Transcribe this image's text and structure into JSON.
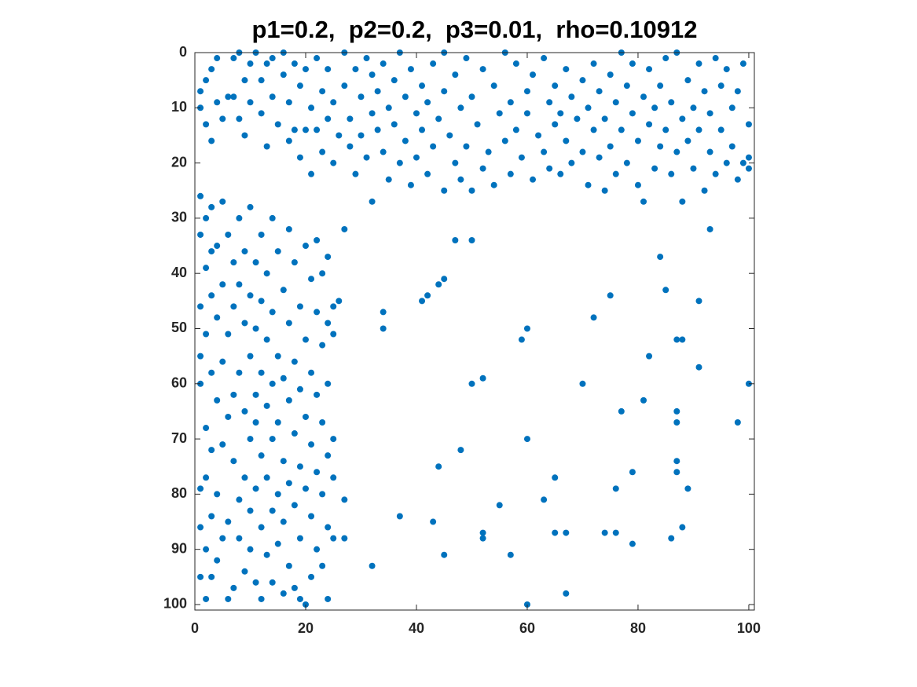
{
  "chart_data": {
    "type": "scatter",
    "title": "p1=0.2,  p2=0.2,  p3=0.01,  rho=0.10912",
    "xlim": [
      0,
      101
    ],
    "ylim": [
      0,
      101
    ],
    "y_direction": "reverse",
    "xticks": [
      0,
      20,
      40,
      60,
      80,
      100
    ],
    "yticks": [
      0,
      10,
      20,
      30,
      40,
      50,
      60,
      70,
      80,
      90,
      100
    ],
    "grid": false,
    "box": true,
    "series": [
      {
        "color": "#0072bd",
        "x": [
          47,
          50,
          93,
          84,
          34,
          34,
          41,
          42,
          44,
          45,
          72,
          75,
          85,
          91,
          60,
          59,
          87,
          88,
          82,
          91,
          50,
          52,
          70,
          100,
          81,
          77,
          87,
          87,
          98,
          60,
          48,
          44,
          87,
          87,
          79,
          65,
          76,
          89,
          63,
          55,
          37,
          43,
          52,
          52,
          65,
          67,
          74,
          76,
          88,
          86,
          79,
          45,
          57,
          32,
          67,
          60,
          27,
          27,
          26,
          27,
          1,
          1,
          2,
          2,
          3,
          3,
          4,
          4,
          5,
          6,
          7,
          7,
          8,
          8,
          9,
          9,
          10,
          10,
          11,
          12,
          12,
          13,
          13,
          14,
          14,
          15,
          16,
          16,
          17,
          17,
          18,
          18,
          19,
          19,
          20,
          20,
          21,
          21,
          22,
          22,
          23,
          23,
          24,
          24,
          25,
          25,
          26,
          27,
          27,
          28,
          28,
          29,
          29,
          30,
          30,
          31,
          31,
          32,
          32,
          32,
          33,
          33,
          34,
          34,
          35,
          35,
          36,
          36,
          37,
          37,
          38,
          38,
          39,
          39,
          40,
          40,
          41,
          41,
          42,
          42,
          43,
          43,
          44,
          45,
          45,
          45,
          46,
          47,
          47,
          48,
          48,
          49,
          49,
          50,
          50,
          51,
          52,
          52,
          53,
          54,
          54,
          55,
          56,
          56,
          57,
          57,
          58,
          58,
          59,
          60,
          60,
          61,
          61,
          62,
          63,
          63,
          64,
          64,
          65,
          65,
          66,
          66,
          67,
          67,
          68,
          68,
          69,
          70,
          70,
          71,
          71,
          72,
          72,
          73,
          73,
          74,
          74,
          75,
          75,
          76,
          76,
          77,
          77,
          78,
          78,
          79,
          79,
          80,
          80,
          81,
          81,
          82,
          82,
          83,
          83,
          84,
          84,
          85,
          85,
          86,
          86,
          87,
          87,
          88,
          88,
          89,
          89,
          90,
          90,
          91,
          91,
          92,
          92,
          93,
          93,
          94,
          94,
          95,
          95,
          96,
          96,
          97,
          97,
          98,
          98,
          99,
          99,
          100,
          100,
          100,
          1,
          1,
          1,
          1,
          1,
          1,
          1,
          1,
          2,
          2,
          2,
          2,
          2,
          2,
          2,
          3,
          3,
          3,
          3,
          3,
          3,
          3,
          4,
          4,
          4,
          4,
          4,
          5,
          5,
          5,
          5,
          5,
          6,
          6,
          6,
          6,
          6,
          7,
          7,
          7,
          7,
          7,
          8,
          8,
          8,
          8,
          8,
          9,
          9,
          9,
          9,
          9,
          10,
          10,
          10,
          10,
          10,
          10,
          11,
          11,
          11,
          11,
          11,
          11,
          12,
          12,
          12,
          12,
          12,
          12,
          13,
          13,
          13,
          13,
          13,
          14,
          14,
          14,
          14,
          14,
          14,
          15,
          15,
          15,
          15,
          15,
          16,
          16,
          16,
          16,
          16,
          17,
          17,
          17,
          17,
          17,
          18,
          18,
          18,
          18,
          18,
          19,
          19,
          19,
          19,
          19,
          20,
          20,
          20,
          20,
          20,
          21,
          21,
          21,
          21,
          21,
          22,
          22,
          22,
          22,
          22,
          23,
          23,
          23,
          23,
          23,
          24,
          24,
          24,
          24,
          24,
          24,
          25,
          25,
          25,
          25,
          25
        ],
        "y": [
          34,
          34,
          32,
          37,
          47,
          50,
          45,
          44,
          42,
          41,
          48,
          44,
          43,
          45,
          50,
          52,
          52,
          52,
          55,
          57,
          60,
          59,
          60,
          60,
          63,
          65,
          65,
          67,
          67,
          70,
          72,
          75,
          74,
          76,
          76,
          77,
          79,
          79,
          81,
          82,
          84,
          85,
          87,
          88,
          87,
          87,
          87,
          87,
          86,
          88,
          89,
          91,
          91,
          93,
          98,
          100,
          81,
          88,
          45,
          32,
          7,
          10,
          5,
          13,
          3,
          16,
          1,
          9,
          12,
          8,
          1,
          8,
          0,
          12,
          5,
          15,
          2,
          9,
          0,
          5,
          11,
          2,
          17,
          1,
          8,
          13,
          0,
          4,
          9,
          16,
          2,
          14,
          6,
          19,
          3,
          14,
          10,
          22,
          1,
          14,
          7,
          18,
          3,
          12,
          9,
          20,
          15,
          0,
          6,
          12,
          17,
          3,
          22,
          8,
          15,
          1,
          19,
          4,
          11,
          27,
          7,
          14,
          2,
          18,
          10,
          23,
          5,
          13,
          0,
          20,
          8,
          16,
          3,
          24,
          11,
          19,
          6,
          14,
          9,
          22,
          2,
          17,
          12,
          0,
          7,
          25,
          15,
          4,
          20,
          10,
          23,
          1,
          17,
          8,
          25,
          13,
          3,
          21,
          18,
          6,
          24,
          11,
          0,
          16,
          9,
          22,
          2,
          14,
          19,
          7,
          11,
          4,
          23,
          15,
          1,
          18,
          9,
          21,
          6,
          13,
          11,
          22,
          3,
          16,
          8,
          20,
          12,
          5,
          18,
          10,
          24,
          2,
          14,
          7,
          19,
          12,
          25,
          4,
          17,
          9,
          22,
          0,
          14,
          6,
          20,
          2,
          11,
          16,
          24,
          8,
          27,
          3,
          13,
          10,
          21,
          6,
          17,
          1,
          14,
          9,
          22,
          0,
          18,
          12,
          27,
          5,
          16,
          10,
          21,
          2,
          14,
          7,
          25,
          11,
          18,
          1,
          22,
          6,
          14,
          3,
          20,
          10,
          17,
          7,
          23,
          2,
          20,
          13,
          19,
          21,
          26,
          33,
          46,
          55,
          60,
          79,
          86,
          95,
          30,
          39,
          51,
          68,
          77,
          90,
          99,
          28,
          36,
          44,
          58,
          72,
          84,
          95,
          35,
          48,
          63,
          80,
          92,
          27,
          42,
          56,
          71,
          88,
          33,
          51,
          66,
          85,
          99,
          38,
          46,
          62,
          74,
          97,
          30,
          42,
          58,
          81,
          88,
          36,
          49,
          65,
          77,
          94,
          28,
          44,
          55,
          70,
          83,
          90,
          38,
          50,
          62,
          67,
          79,
          96,
          33,
          45,
          58,
          73,
          86,
          99,
          40,
          52,
          64,
          77,
          91,
          30,
          47,
          60,
          70,
          83,
          96,
          36,
          55,
          67,
          80,
          89,
          43,
          59,
          74,
          85,
          98,
          32,
          49,
          63,
          78,
          93,
          38,
          56,
          69,
          82,
          97,
          46,
          61,
          75,
          88,
          99,
          35,
          52,
          66,
          79,
          100,
          41,
          58,
          71,
          84,
          95,
          34,
          47,
          62,
          76,
          90,
          40,
          53,
          67,
          80,
          93,
          37,
          49,
          60,
          73,
          86,
          99,
          46,
          51,
          70,
          77,
          88
        ]
      }
    ]
  }
}
